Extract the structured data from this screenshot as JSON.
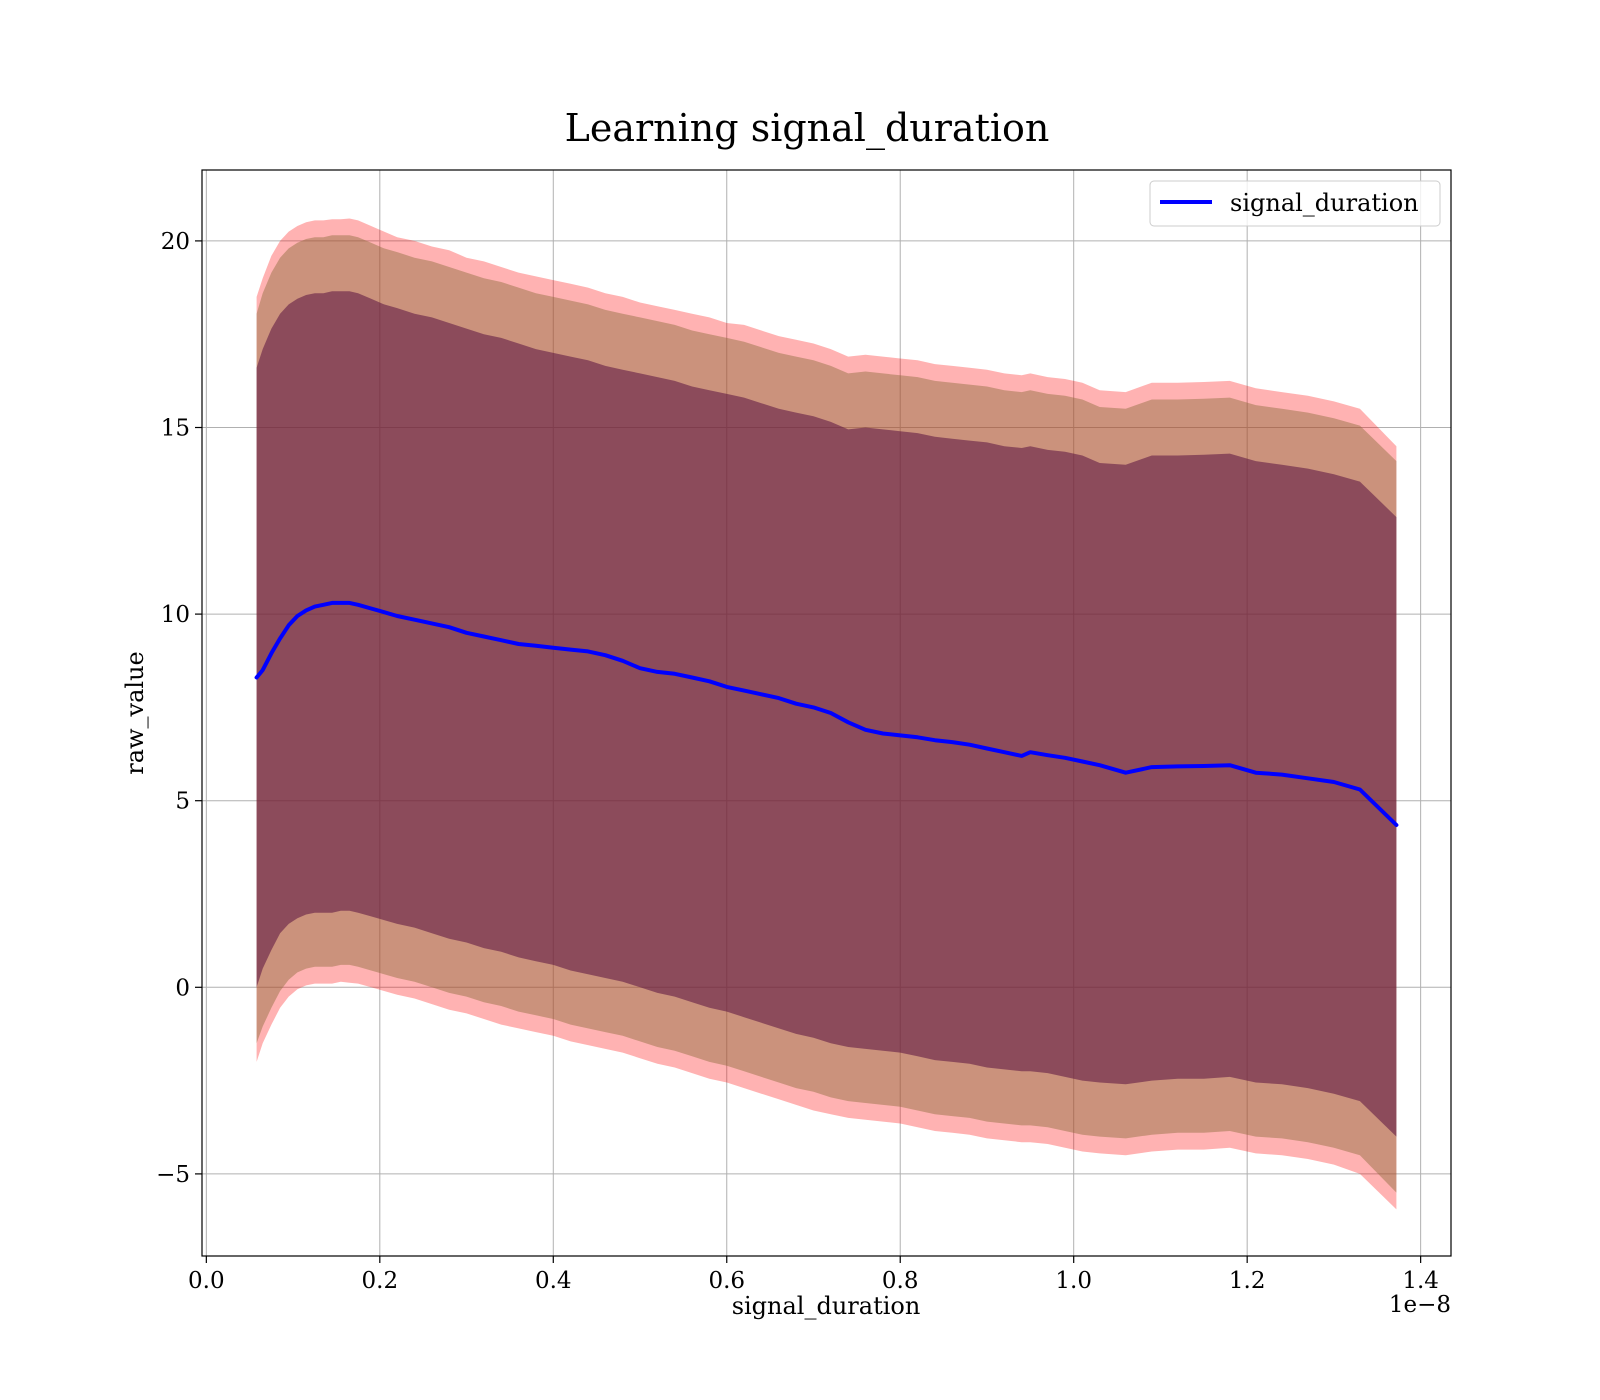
{
  "chart_data": {
    "type": "area",
    "title": "Learning signal_duration",
    "xlabel": "signal_duration",
    "ylabel": "raw_value",
    "x_offset_text": "1e−8",
    "xlim": [
      -0.005,
      1.435
    ],
    "ylim": [
      -7.2,
      21.9
    ],
    "xticks": [
      0.0,
      0.2,
      0.4,
      0.6,
      0.8,
      1.0,
      1.2,
      1.4
    ],
    "xtick_labels": [
      "0.0",
      "0.2",
      "0.4",
      "0.6",
      "0.8",
      "1.0",
      "1.2",
      "1.4"
    ],
    "yticks": [
      -5,
      0,
      5,
      10,
      15,
      20
    ],
    "ytick_labels": [
      "−5",
      "0",
      "5",
      "10",
      "15",
      "20"
    ],
    "grid": true,
    "legend": {
      "position": "top-right",
      "entries": [
        "signal_duration"
      ]
    },
    "colors": {
      "line": "#0000ff",
      "outer_band": "#ff0000",
      "middle_band": "#8b6a3a",
      "inner_band": "#5a1040"
    },
    "x": [
      0.058,
      0.065,
      0.075,
      0.085,
      0.095,
      0.105,
      0.115,
      0.125,
      0.135,
      0.145,
      0.155,
      0.165,
      0.175,
      0.19,
      0.205,
      0.22,
      0.24,
      0.26,
      0.28,
      0.3,
      0.32,
      0.34,
      0.36,
      0.38,
      0.4,
      0.42,
      0.44,
      0.46,
      0.48,
      0.5,
      0.52,
      0.54,
      0.56,
      0.58,
      0.6,
      0.62,
      0.64,
      0.66,
      0.68,
      0.7,
      0.72,
      0.74,
      0.76,
      0.78,
      0.8,
      0.82,
      0.84,
      0.86,
      0.88,
      0.9,
      0.92,
      0.94,
      0.95,
      0.97,
      0.99,
      1.01,
      1.03,
      1.06,
      1.09,
      1.12,
      1.15,
      1.18,
      1.21,
      1.24,
      1.27,
      1.3,
      1.33,
      1.372
    ],
    "series": [
      {
        "name": "signal_duration",
        "values": [
          8.3,
          8.5,
          8.95,
          9.35,
          9.7,
          9.95,
          10.1,
          10.2,
          10.25,
          10.3,
          10.3,
          10.3,
          10.25,
          10.15,
          10.05,
          9.95,
          9.85,
          9.75,
          9.65,
          9.5,
          9.4,
          9.3,
          9.2,
          9.15,
          9.1,
          9.05,
          9.0,
          8.9,
          8.75,
          8.55,
          8.45,
          8.4,
          8.3,
          8.2,
          8.05,
          7.95,
          7.85,
          7.75,
          7.6,
          7.5,
          7.35,
          7.1,
          6.9,
          6.8,
          6.75,
          6.7,
          6.62,
          6.57,
          6.5,
          6.4,
          6.3,
          6.2,
          6.3,
          6.22,
          6.15,
          6.05,
          5.95,
          5.75,
          5.9,
          5.92,
          5.93,
          5.95,
          5.75,
          5.7,
          5.6,
          5.5,
          5.3,
          4.35
        ]
      }
    ],
    "bands": [
      {
        "upper": [
          18.5,
          19.0,
          19.6,
          20.0,
          20.25,
          20.4,
          20.5,
          20.55,
          20.55,
          20.58,
          20.58,
          20.6,
          20.55,
          20.4,
          20.25,
          20.1,
          20.0,
          19.85,
          19.75,
          19.55,
          19.45,
          19.3,
          19.15,
          19.05,
          18.95,
          18.85,
          18.75,
          18.6,
          18.5,
          18.35,
          18.25,
          18.15,
          18.05,
          17.95,
          17.8,
          17.75,
          17.6,
          17.45,
          17.35,
          17.25,
          17.1,
          16.9,
          16.95,
          16.9,
          16.85,
          16.8,
          16.7,
          16.65,
          16.6,
          16.55,
          16.45,
          16.4,
          16.45,
          16.35,
          16.3,
          16.2,
          16.0,
          15.95,
          16.2,
          16.2,
          16.22,
          16.25,
          16.05,
          15.95,
          15.85,
          15.7,
          15.5,
          14.5
        ],
        "lower": [
          -2.0,
          -1.5,
          -1.0,
          -0.55,
          -0.25,
          -0.05,
          0.05,
          0.1,
          0.1,
          0.1,
          0.15,
          0.12,
          0.1,
          0.0,
          -0.1,
          -0.2,
          -0.3,
          -0.45,
          -0.6,
          -0.7,
          -0.85,
          -1.0,
          -1.1,
          -1.2,
          -1.3,
          -1.45,
          -1.55,
          -1.65,
          -1.75,
          -1.9,
          -2.05,
          -2.15,
          -2.3,
          -2.45,
          -2.55,
          -2.7,
          -2.85,
          -3.0,
          -3.15,
          -3.3,
          -3.4,
          -3.5,
          -3.55,
          -3.6,
          -3.65,
          -3.75,
          -3.85,
          -3.9,
          -3.95,
          -4.05,
          -4.1,
          -4.15,
          -4.15,
          -4.2,
          -4.3,
          -4.4,
          -4.45,
          -4.5,
          -4.4,
          -4.35,
          -4.35,
          -4.3,
          -4.45,
          -4.5,
          -4.6,
          -4.75,
          -5.0,
          -5.95
        ]
      },
      {
        "upper": [
          18.05,
          18.6,
          19.15,
          19.55,
          19.8,
          19.95,
          20.05,
          20.1,
          20.1,
          20.15,
          20.15,
          20.15,
          20.1,
          19.95,
          19.8,
          19.7,
          19.55,
          19.45,
          19.3,
          19.15,
          19.0,
          18.9,
          18.75,
          18.6,
          18.5,
          18.4,
          18.3,
          18.15,
          18.05,
          17.95,
          17.85,
          17.75,
          17.6,
          17.5,
          17.4,
          17.3,
          17.15,
          17.0,
          16.9,
          16.8,
          16.65,
          16.45,
          16.5,
          16.45,
          16.4,
          16.35,
          16.25,
          16.2,
          16.15,
          16.1,
          16.0,
          15.95,
          16.0,
          15.9,
          15.85,
          15.75,
          15.55,
          15.5,
          15.75,
          15.75,
          15.77,
          15.8,
          15.6,
          15.5,
          15.4,
          15.25,
          15.05,
          14.1
        ],
        "lower": [
          -1.5,
          -1.05,
          -0.55,
          -0.1,
          0.2,
          0.4,
          0.5,
          0.55,
          0.55,
          0.55,
          0.6,
          0.6,
          0.55,
          0.45,
          0.35,
          0.25,
          0.15,
          0.0,
          -0.15,
          -0.25,
          -0.4,
          -0.5,
          -0.65,
          -0.75,
          -0.85,
          -1.0,
          -1.1,
          -1.2,
          -1.3,
          -1.45,
          -1.6,
          -1.7,
          -1.85,
          -2.0,
          -2.1,
          -2.25,
          -2.4,
          -2.55,
          -2.7,
          -2.8,
          -2.95,
          -3.05,
          -3.1,
          -3.15,
          -3.2,
          -3.3,
          -3.4,
          -3.45,
          -3.5,
          -3.6,
          -3.65,
          -3.7,
          -3.7,
          -3.75,
          -3.85,
          -3.95,
          -4.0,
          -4.05,
          -3.95,
          -3.9,
          -3.9,
          -3.85,
          -4.0,
          -4.05,
          -4.15,
          -4.3,
          -4.5,
          -5.5
        ]
      },
      {
        "upper": [
          16.6,
          17.1,
          17.65,
          18.05,
          18.3,
          18.45,
          18.55,
          18.6,
          18.6,
          18.65,
          18.65,
          18.65,
          18.6,
          18.45,
          18.3,
          18.2,
          18.05,
          17.95,
          17.8,
          17.65,
          17.5,
          17.4,
          17.25,
          17.1,
          17.0,
          16.9,
          16.8,
          16.65,
          16.55,
          16.45,
          16.35,
          16.25,
          16.1,
          16.0,
          15.9,
          15.8,
          15.65,
          15.5,
          15.4,
          15.3,
          15.15,
          14.95,
          15.0,
          14.95,
          14.9,
          14.85,
          14.75,
          14.7,
          14.65,
          14.6,
          14.5,
          14.45,
          14.5,
          14.4,
          14.35,
          14.25,
          14.05,
          14.0,
          14.25,
          14.25,
          14.27,
          14.3,
          14.1,
          14.0,
          13.9,
          13.75,
          13.55,
          12.6
        ],
        "lower": [
          0.0,
          0.5,
          1.0,
          1.45,
          1.7,
          1.85,
          1.95,
          2.0,
          2.0,
          2.0,
          2.05,
          2.05,
          2.0,
          1.9,
          1.8,
          1.7,
          1.6,
          1.45,
          1.3,
          1.2,
          1.05,
          0.95,
          0.8,
          0.7,
          0.6,
          0.45,
          0.35,
          0.25,
          0.15,
          0.0,
          -0.15,
          -0.25,
          -0.4,
          -0.55,
          -0.65,
          -0.8,
          -0.95,
          -1.1,
          -1.25,
          -1.35,
          -1.5,
          -1.6,
          -1.65,
          -1.7,
          -1.75,
          -1.85,
          -1.95,
          -2.0,
          -2.05,
          -2.15,
          -2.2,
          -2.25,
          -2.25,
          -2.3,
          -2.4,
          -2.5,
          -2.55,
          -2.6,
          -2.5,
          -2.45,
          -2.45,
          -2.4,
          -2.55,
          -2.6,
          -2.7,
          -2.85,
          -3.05,
          -4.0
        ]
      }
    ]
  }
}
